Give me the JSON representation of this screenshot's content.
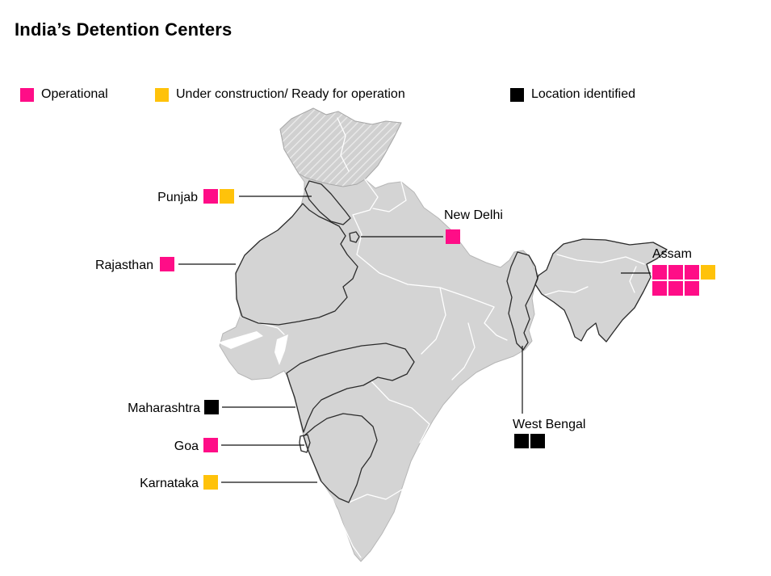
{
  "title": "India’s Detention Centers",
  "legend": {
    "items": [
      {
        "key": "operational",
        "label": "Operational",
        "color": "#ff0d87"
      },
      {
        "key": "under_construction",
        "label": "Under construction/ Ready for operation",
        "color": "#ffc20a"
      },
      {
        "key": "location_identified",
        "label": "Location identified",
        "color": "#000000"
      }
    ]
  },
  "map": {
    "country": "India",
    "fill_color": "#d4d4d4",
    "border_color": "#ffffff",
    "highlight_outline_color": "#2b2b2b"
  },
  "regions": [
    {
      "id": "punjab",
      "label": "Punjab",
      "markers": [
        "operational",
        "under_construction"
      ]
    },
    {
      "id": "new_delhi",
      "label": "New Delhi",
      "markers": [
        "operational"
      ]
    },
    {
      "id": "rajasthan",
      "label": "Rajasthan",
      "markers": [
        "operational"
      ]
    },
    {
      "id": "assam",
      "label": "Assam",
      "markers": [
        "operational",
        "operational",
        "operational",
        "under_construction",
        "operational",
        "operational",
        "operational"
      ]
    },
    {
      "id": "maharashtra",
      "label": "Maharashtra",
      "markers": [
        "location_identified"
      ]
    },
    {
      "id": "goa",
      "label": "Goa",
      "markers": [
        "operational"
      ]
    },
    {
      "id": "karnataka",
      "label": "Karnataka",
      "markers": [
        "under_construction"
      ]
    },
    {
      "id": "west_bengal",
      "label": "West Bengal",
      "markers": [
        "location_identified",
        "location_identified"
      ]
    }
  ]
}
